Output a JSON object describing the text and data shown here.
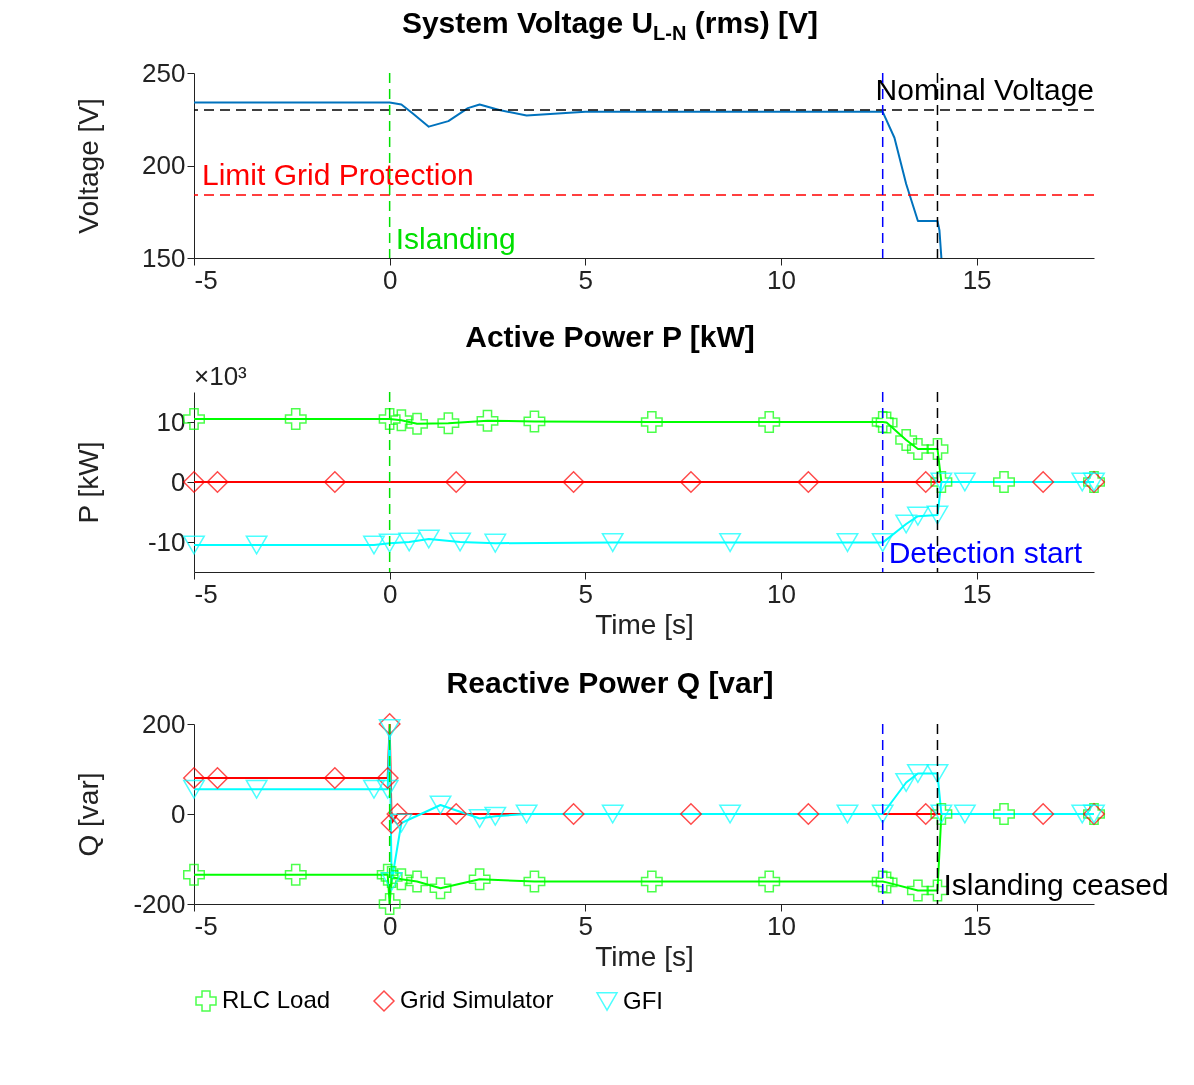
{
  "chart_data": [
    {
      "type": "line",
      "title": "System Voltage U$_{L-N}$ (rms) [V]",
      "ylabel": "Voltage [V]",
      "xlim": [
        -5,
        18
      ],
      "xticks": [
        -5,
        0,
        5,
        10,
        15
      ],
      "ylim": [
        150,
        250
      ],
      "yticks": [
        150,
        200,
        250
      ],
      "grid": false,
      "legend": false,
      "marker": "none",
      "line_style": "solid",
      "series": [
        {
          "color": "#0072bd",
          "x": [
            -5,
            0,
            0.3,
            0.6,
            1,
            1.5,
            2,
            2.3,
            2.8,
            3.5,
            4.2,
            5,
            8,
            12.6,
            12.9,
            13.2,
            13.5,
            14.0,
            14.05,
            14.1
          ],
          "values": [
            234,
            234,
            233,
            228,
            221,
            224,
            231,
            233,
            230,
            227,
            228,
            229,
            229,
            229,
            215,
            190,
            170,
            170,
            165,
            150
          ]
        }
      ],
      "ref_lines": [
        {
          "axis": "y",
          "value": 230,
          "label": "Nominal Voltage",
          "color": "#000000",
          "line_style": "dashed"
        },
        {
          "axis": "y",
          "value": 184,
          "label": "Limit Grid Protection",
          "color": "#ff0000",
          "line_style": "dashed"
        },
        {
          "axis": "x",
          "value": 0,
          "label": "Islanding",
          "color": "#00e000",
          "line_style": "dashed"
        },
        {
          "axis": "x",
          "value": 12.6,
          "color": "#0000ff",
          "line_style": "dashed"
        },
        {
          "axis": "x",
          "value": 14.0,
          "color": "#000000",
          "line_style": "dashed"
        }
      ]
    },
    {
      "type": "line",
      "title": "Active Power P [kW]",
      "xlabel": "Time [s]",
      "ylabel": "P [kW]",
      "xlim": [
        -5,
        18
      ],
      "xticks": [
        -5,
        0,
        5,
        10,
        15
      ],
      "ylim": [
        -15,
        15
      ],
      "yticks": [
        -10,
        0,
        10
      ],
      "grid": false,
      "legend": false,
      "line_style": "solid",
      "annotations": [
        "×10³"
      ],
      "series": [
        {
          "color": "#00ff00",
          "marker": "cross",
          "x": [
            -5,
            -2.4,
            0,
            0.3,
            0.7,
            1.5,
            2.5,
            3.7,
            6.7,
            9.7,
            12.6,
            12.7,
            13.2,
            13.5,
            14.0,
            14.1,
            15.7,
            18
          ],
          "values": [
            10.5,
            10.5,
            10.5,
            10.3,
            9.7,
            9.8,
            10.2,
            10.1,
            10,
            10,
            10,
            9.9,
            7,
            5.5,
            5.5,
            0,
            0,
            0
          ]
        },
        {
          "color": "#ff0000",
          "marker": "diamond",
          "x": [
            -5,
            -4.4,
            -1.4,
            1.7,
            4.7,
            7.7,
            10.7,
            13.7,
            16.7,
            18
          ],
          "values": [
            0,
            0,
            0,
            0,
            0,
            0,
            0,
            0,
            0,
            0
          ]
        },
        {
          "color": "#00ffff",
          "marker": "triangle",
          "x": [
            -5,
            -3.4,
            -0.4,
            0,
            0.5,
            1,
            1.8,
            2.7,
            5.7,
            8.7,
            11.7,
            12.6,
            13.2,
            13.5,
            14.0,
            14.1,
            14.7,
            17.7,
            18
          ],
          "values": [
            -10.5,
            -10.5,
            -10.5,
            -10.2,
            -10,
            -9.5,
            -10,
            -10.2,
            -10.1,
            -10.1,
            -10.1,
            -10.1,
            -7,
            -5.7,
            -5.5,
            0,
            0,
            0,
            0
          ]
        }
      ],
      "ref_lines": [
        {
          "axis": "x",
          "value": 0,
          "color": "#00e000",
          "line_style": "dashed"
        },
        {
          "axis": "x",
          "value": 12.6,
          "label": "Detection start",
          "color": "#0000ff",
          "line_style": "dashed"
        },
        {
          "axis": "x",
          "value": 14.0,
          "color": "#000000",
          "line_style": "dashed"
        }
      ]
    },
    {
      "type": "line",
      "title": "Reactive Power Q [var]",
      "xlabel": "Time [s]",
      "ylabel": "Q [var]",
      "xlim": [
        -5,
        18
      ],
      "xticks": [
        -5,
        0,
        5,
        10,
        15
      ],
      "ylim": [
        -200,
        200
      ],
      "yticks": [
        -200,
        0,
        200
      ],
      "grid": false,
      "legend": "bottom",
      "line_style": "solid",
      "series": [
        {
          "name": "RLC Load",
          "color": "#00ff00",
          "marker": "cross",
          "x": [
            -5,
            -2.4,
            -0.05,
            0,
            0.05,
            0.3,
            0.7,
            1.3,
            2.3,
            3.7,
            6.7,
            9.7,
            12.6,
            12.7,
            13.5,
            14.0,
            14.1,
            15.7,
            18
          ],
          "values": [
            -135,
            -135,
            -135,
            -200,
            -140,
            -145,
            -150,
            -165,
            -145,
            -150,
            -150,
            -150,
            -150,
            -152,
            -170,
            -170,
            0,
            0,
            0
          ]
        },
        {
          "name": "Grid Simulator",
          "color": "#ff0000",
          "marker": "diamond",
          "x": [
            -5,
            -4.4,
            -1.4,
            -0.05,
            0,
            0.05,
            0.2,
            1.7,
            4.7,
            7.7,
            10.7,
            13.7,
            16.7,
            18
          ],
          "values": [
            80,
            80,
            80,
            80,
            200,
            -20,
            0,
            0,
            0,
            0,
            0,
            0,
            0,
            0
          ]
        },
        {
          "name": "GFI",
          "color": "#00ffff",
          "marker": "triangle",
          "x": [
            -5,
            -3.4,
            -0.4,
            -0.05,
            0,
            0.05,
            0.3,
            1.3,
            2.3,
            2.7,
            3.5,
            5.7,
            8.7,
            11.7,
            12.6,
            13.2,
            13.5,
            14.0,
            14.1,
            14.7,
            17.7,
            18
          ],
          "values": [
            55,
            55,
            55,
            55,
            190,
            -150,
            -20,
            20,
            -10,
            -5,
            0,
            0,
            0,
            0,
            0,
            70,
            90,
            90,
            0,
            0,
            0,
            0
          ]
        }
      ],
      "ref_lines": [
        {
          "axis": "x",
          "value": 0,
          "color": "#00e000",
          "line_style": "dashed"
        },
        {
          "axis": "x",
          "value": 12.6,
          "color": "#0000ff",
          "line_style": "dashed"
        },
        {
          "axis": "x",
          "value": 14.0,
          "label": "Islanding ceased",
          "color": "#000000",
          "line_style": "dashed"
        }
      ]
    }
  ]
}
